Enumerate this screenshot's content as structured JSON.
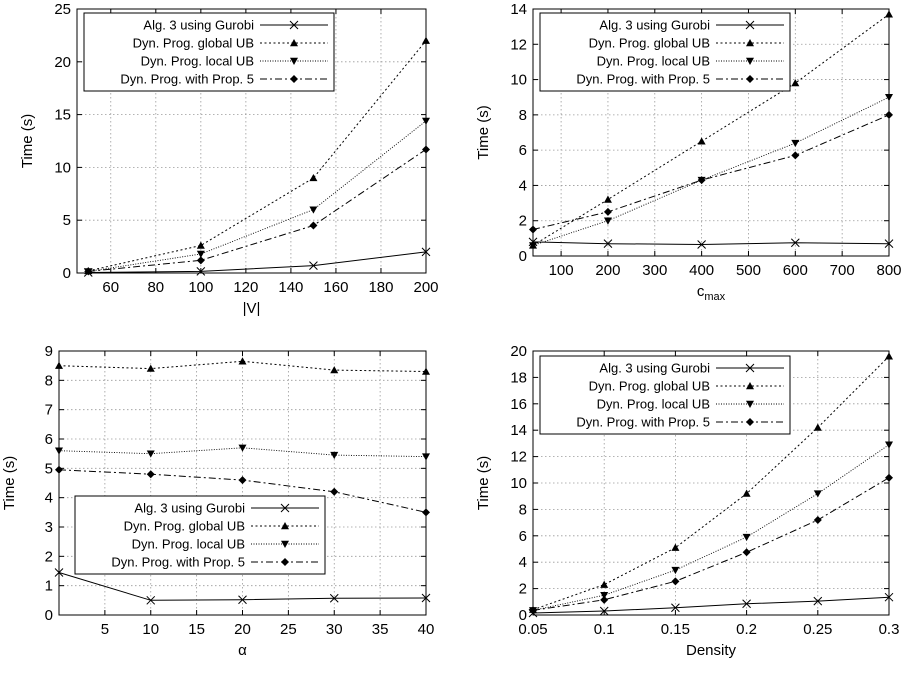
{
  "chart_data": [
    {
      "type": "line",
      "xlabel": "|V|",
      "ylabel": "Time (s)",
      "xlim": [
        45,
        200
      ],
      "ylim": [
        0,
        25
      ],
      "xticks": [
        60,
        80,
        100,
        120,
        140,
        160,
        180,
        200
      ],
      "yticks": [
        0,
        5,
        10,
        15,
        20,
        25
      ],
      "x": [
        50,
        100,
        150,
        200
      ],
      "legend": {
        "placement": "top-left"
      },
      "series": [
        {
          "name": "Alg. 3 using Gurobi",
          "marker": "x",
          "dash": "solid",
          "values": [
            0.05,
            0.15,
            0.7,
            2.0
          ]
        },
        {
          "name": "Dyn. Prog. global UB",
          "marker": "triangle-up",
          "dash": "dotted",
          "values": [
            0.2,
            2.6,
            9.0,
            22.0
          ]
        },
        {
          "name": "Dyn. Prog. local UB",
          "marker": "triangle-down",
          "dash": "fine-dotted",
          "values": [
            0.15,
            1.8,
            6.0,
            14.4
          ]
        },
        {
          "name": "Dyn. Prog. with Prop. 5",
          "marker": "diamond",
          "dash": "dash-dot",
          "values": [
            0.15,
            1.2,
            4.5,
            11.7
          ]
        }
      ]
    },
    {
      "type": "line",
      "xlabel": "c",
      "xlabel_sub": "max",
      "ylabel": "Time (s)",
      "xlim": [
        40,
        800
      ],
      "ylim": [
        0,
        14
      ],
      "xticks": [
        100,
        200,
        300,
        400,
        500,
        600,
        700,
        800
      ],
      "yticks": [
        0,
        2,
        4,
        6,
        8,
        10,
        12,
        14
      ],
      "x": [
        40,
        200,
        400,
        600,
        800
      ],
      "legend": {
        "placement": "top-left"
      },
      "series": [
        {
          "name": "Alg. 3 using Gurobi",
          "marker": "x",
          "dash": "solid",
          "values": [
            0.8,
            0.7,
            0.65,
            0.75,
            0.7
          ]
        },
        {
          "name": "Dyn. Prog. global UB",
          "marker": "triangle-up",
          "dash": "dotted",
          "values": [
            0.6,
            3.2,
            6.5,
            9.8,
            13.7
          ]
        },
        {
          "name": "Dyn. Prog. local UB",
          "marker": "triangle-down",
          "dash": "fine-dotted",
          "values": [
            0.6,
            2.0,
            4.3,
            6.4,
            9.0
          ]
        },
        {
          "name": "Dyn. Prog. with Prop. 5",
          "marker": "diamond",
          "dash": "dash-dot",
          "values": [
            1.5,
            2.5,
            4.3,
            5.7,
            8.0
          ]
        }
      ]
    },
    {
      "type": "line",
      "xlabel": "α",
      "ylabel": "Time (s)",
      "xlim": [
        0,
        40
      ],
      "ylim": [
        0,
        9
      ],
      "xticks": [
        5,
        10,
        15,
        20,
        25,
        30,
        35,
        40
      ],
      "yticks": [
        0,
        1,
        2,
        3,
        4,
        5,
        6,
        7,
        8,
        9
      ],
      "x": [
        0,
        10,
        20,
        30,
        40
      ],
      "legend": {
        "placement": "bottom-center"
      },
      "series": [
        {
          "name": "Alg. 3 using Gurobi",
          "marker": "x",
          "dash": "solid",
          "values": [
            1.45,
            0.5,
            0.52,
            0.57,
            0.58
          ]
        },
        {
          "name": "Dyn. Prog. global UB",
          "marker": "triangle-up",
          "dash": "dotted",
          "values": [
            8.5,
            8.4,
            8.65,
            8.35,
            8.3
          ]
        },
        {
          "name": "Dyn. Prog. local UB",
          "marker": "triangle-down",
          "dash": "fine-dotted",
          "values": [
            5.6,
            5.5,
            5.7,
            5.45,
            5.4
          ]
        },
        {
          "name": "Dyn. Prog. with Prop. 5",
          "marker": "diamond",
          "dash": "dash-dot",
          "values": [
            4.95,
            4.8,
            4.6,
            4.2,
            3.5
          ]
        }
      ]
    },
    {
      "type": "line",
      "xlabel": "Density",
      "ylabel": "Time (s)",
      "xlim": [
        0.05,
        0.3
      ],
      "ylim": [
        0,
        20
      ],
      "xticks": [
        0.05,
        0.1,
        0.15,
        0.2,
        0.25,
        0.3
      ],
      "yticks": [
        0,
        2,
        4,
        6,
        8,
        10,
        12,
        14,
        16,
        18,
        20
      ],
      "x": [
        0.05,
        0.1,
        0.15,
        0.2,
        0.25,
        0.3
      ],
      "legend": {
        "placement": "top-left"
      },
      "series": [
        {
          "name": "Alg. 3 using Gurobi",
          "marker": "x",
          "dash": "solid",
          "values": [
            0.15,
            0.3,
            0.55,
            0.85,
            1.05,
            1.35
          ]
        },
        {
          "name": "Dyn. Prog. global UB",
          "marker": "triangle-up",
          "dash": "dotted",
          "values": [
            0.4,
            2.3,
            5.1,
            9.2,
            14.2,
            19.6
          ]
        },
        {
          "name": "Dyn. Prog. local UB",
          "marker": "triangle-down",
          "dash": "fine-dotted",
          "values": [
            0.35,
            1.5,
            3.4,
            5.9,
            9.2,
            12.9
          ]
        },
        {
          "name": "Dyn. Prog. with Prop. 5",
          "marker": "diamond",
          "dash": "dash-dot",
          "values": [
            0.35,
            1.15,
            2.55,
            4.75,
            7.2,
            10.4
          ]
        }
      ]
    }
  ]
}
